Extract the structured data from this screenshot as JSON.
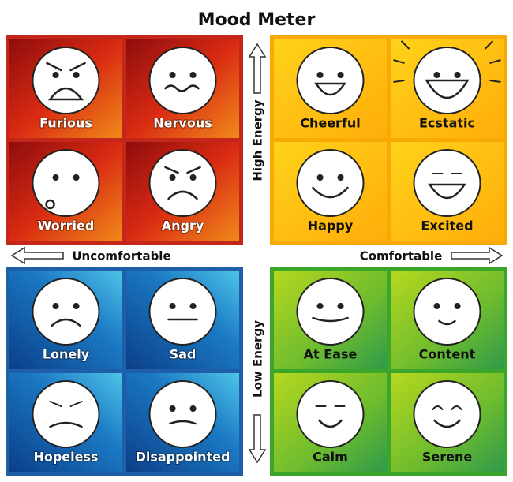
{
  "title": "Mood Meter",
  "axes": {
    "high": "High Energy",
    "low": "Low Energy",
    "left": "Uncomfortable",
    "right": "Comfortable"
  },
  "quadrants": [
    {
      "cells": [
        {
          "label": "Furious"
        },
        {
          "label": "Nervous"
        },
        {
          "label": "Worried"
        },
        {
          "label": "Angry"
        }
      ]
    },
    {
      "cells": [
        {
          "label": "Cheerful"
        },
        {
          "label": "Ecstatic"
        },
        {
          "label": "Happy"
        },
        {
          "label": "Excited"
        }
      ]
    },
    {
      "cells": [
        {
          "label": "Lonely"
        },
        {
          "label": "Sad"
        },
        {
          "label": "Hopeless"
        },
        {
          "label": "Disappointed"
        }
      ]
    },
    {
      "cells": [
        {
          "label": "At Ease"
        },
        {
          "label": "Content"
        },
        {
          "label": "Calm"
        },
        {
          "label": "Serene"
        }
      ]
    }
  ]
}
